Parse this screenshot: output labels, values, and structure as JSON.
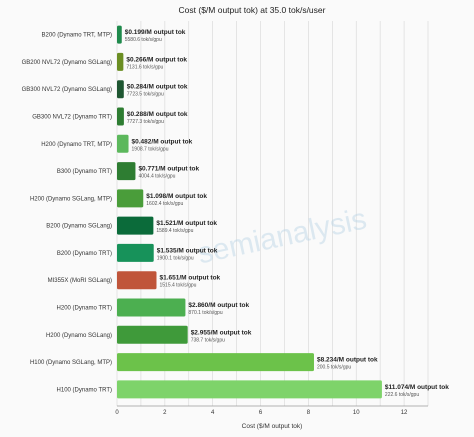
{
  "chart_data": {
    "type": "bar",
    "orientation": "horizontal",
    "title": "Cost ($/M output tok) at 35.0 tok/s/user",
    "xlabel": "Cost ($/M output tok)",
    "ylabel": "",
    "xlim": [
      0,
      13
    ],
    "xticks": [
      "0",
      "2",
      "4",
      "6",
      "8",
      "10",
      "12"
    ],
    "grid": true,
    "watermark": "semianalysis",
    "categories": [
      "B200 (Dynamo TRT, MTP)",
      "GB200 NVL72 (Dynamo SGLang)",
      "GB300 NVL72 (Dynamo SGLang)",
      "GB300 NVL72 (Dynamo TRT)",
      "H200 (Dynamo TRT, MTP)",
      "B300 (Dynamo TRT)",
      "H200 (Dynamo SGLang, MTP)",
      "B200 (Dynamo SGLang)",
      "B200 (Dynamo TRT)",
      "MI355X (MoRI SGLang)",
      "H200 (Dynamo TRT)",
      "H200 (Dynamo SGLang)",
      "H100 (Dynamo SGLang, MTP)",
      "H100 (Dynamo TRT)"
    ],
    "values": [
      0.199,
      0.266,
      0.284,
      0.288,
      0.482,
      0.771,
      1.098,
      1.521,
      1.535,
      1.651,
      2.86,
      2.955,
      8.234,
      11.074
    ],
    "cost_labels": [
      "$0.199/M output tok",
      "$0.266/M output tok",
      "$0.284/M output tok",
      "$0.288/M output tok",
      "$0.482/M output tok",
      "$0.771/M output tok",
      "$1.098/M output tok",
      "$1.521/M output tok",
      "$1.535/M output tok",
      "$1.651/M output tok",
      "$2.860/M output tok",
      "$2.955/M output tok",
      "$8.234/M output tok",
      "$11.074/M output tok"
    ],
    "throughput_labels": [
      "5580.6 tok/s/gpu",
      "7131.6 tok/s/gpu",
      "7723.5 tok/s/gpu",
      "7727.3 tok/s/gpu",
      "1908.7 tok/s/gpu",
      "4004.4 tok/s/gpu",
      "1602.4 tok/s/gpu",
      "1589.4 tok/s/gpu",
      "1900.1 tok/s/gpu",
      "1515.4 tok/s/gpu",
      "870.1 tok/s/gpu",
      "738.7 tok/s/gpu",
      "200.5 tok/s/gpu",
      "222.6 tok/s/gpu"
    ],
    "bar_colors": [
      "#1f8a4c",
      "#6b8e23",
      "#1e5631",
      "#2e7d32",
      "#5cb85c",
      "#2e7d32",
      "#4a9d3a",
      "#0b6b3a",
      "#17925a",
      "#c0553a",
      "#4caf50",
      "#3f9a3a",
      "#6cc24a",
      "#7ed36a"
    ]
  }
}
